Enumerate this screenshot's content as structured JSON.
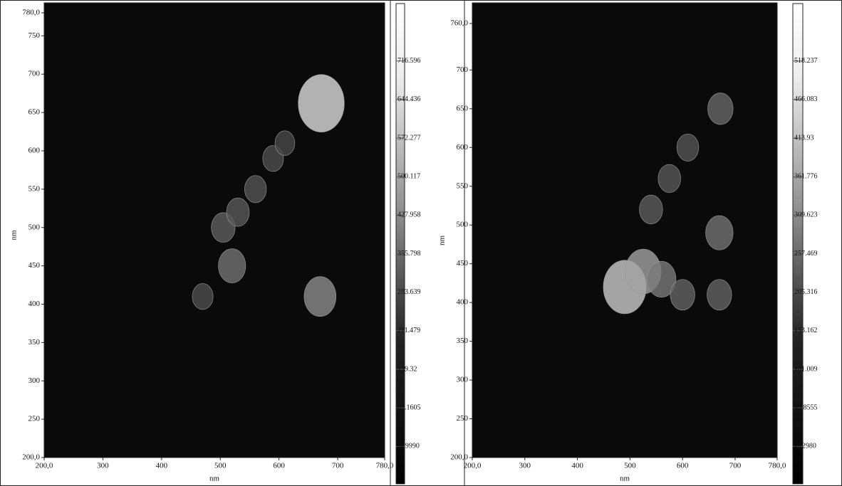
{
  "chart_data": [
    {
      "type": "contour",
      "x_label": "nm",
      "y_label": "nm",
      "xlim": [
        200,
        780
      ],
      "ylim": [
        200,
        780
      ],
      "xticks": [
        {
          "value": 200,
          "label": "200,0"
        },
        300,
        400,
        500,
        600,
        700,
        {
          "value": 780,
          "label": "780,0"
        }
      ],
      "yticks": [
        {
          "value": 200,
          "label": "200,0"
        },
        250,
        300,
        350,
        400,
        450,
        500,
        550,
        600,
        650,
        700,
        750,
        {
          "value": 780,
          "label": "780,0"
        }
      ],
      "clim": [
        -75,
        824
      ],
      "cticks": [
        {
          "value": -4.999,
          "label": "-4.9990"
        },
        67.1605,
        139.32,
        211.479,
        283.639,
        355.798,
        427.958,
        500.117,
        572.277,
        644.436,
        716.596
      ],
      "peaks": {
        "x": [
          672,
          670,
          520,
          505,
          470,
          530,
          560,
          590,
          610
        ],
        "y": [
          662,
          410,
          450,
          500,
          410,
          520,
          550,
          590,
          610
        ],
        "values": [
          700,
          420,
          330,
          260,
          200,
          240,
          220,
          200,
          180
        ]
      }
    },
    {
      "type": "contour",
      "x_label": "nm",
      "y_label": "nm",
      "xlim": [
        200,
        780
      ],
      "ylim": [
        200,
        760
      ],
      "xticks": [
        {
          "value": 200,
          "label": "200,0"
        },
        300,
        400,
        500,
        600,
        700,
        {
          "value": 780,
          "label": "780,0"
        }
      ],
      "yticks": [
        {
          "value": 200,
          "label": "200,0"
        },
        250,
        300,
        350,
        400,
        450,
        500,
        550,
        600,
        650,
        700,
        {
          "value": 760,
          "label": "760,0"
        }
      ],
      "clim": [
        -54,
        596
      ],
      "cticks": [
        {
          "value": -3.298,
          "label": "-3.2980"
        },
        48.8555,
        101.009,
        153.162,
        205.316,
        257.469,
        309.623,
        361.776,
        413.93,
        466.083,
        518.237
      ],
      "peaks": {
        "x": [
          490,
          525,
          560,
          600,
          670,
          672,
          670,
          540,
          575,
          610
        ],
        "y": [
          420,
          440,
          430,
          410,
          490,
          650,
          410,
          520,
          560,
          600
        ],
        "values": [
          460,
          360,
          260,
          200,
          240,
          210,
          200,
          180,
          170,
          160
        ]
      }
    }
  ]
}
